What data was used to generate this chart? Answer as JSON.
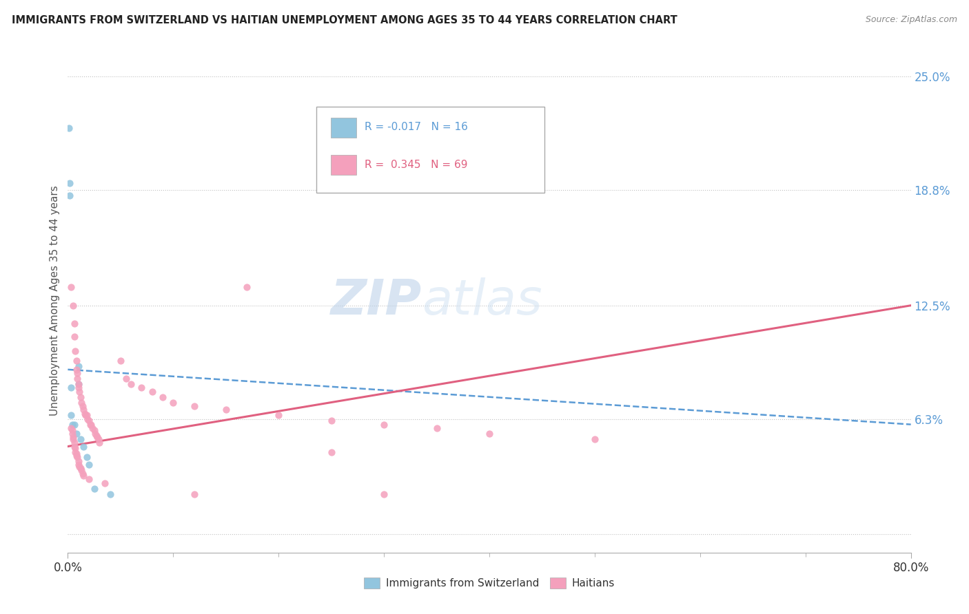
{
  "title": "IMMIGRANTS FROM SWITZERLAND VS HAITIAN UNEMPLOYMENT AMONG AGES 35 TO 44 YEARS CORRELATION CHART",
  "source": "Source: ZipAtlas.com",
  "ylabel": "Unemployment Among Ages 35 to 44 years",
  "xlim": [
    0.0,
    0.8
  ],
  "ylim": [
    -0.01,
    0.265
  ],
  "yticks": [
    0.0,
    0.063,
    0.125,
    0.188,
    0.25
  ],
  "ytick_labels": [
    "",
    "6.3%",
    "12.5%",
    "18.8%",
    "25.0%"
  ],
  "xticks": [
    0.0,
    0.8
  ],
  "xtick_labels": [
    "0.0%",
    "80.0%"
  ],
  "swiss_color": "#92c5de",
  "haitian_color": "#f4a0bc",
  "swiss_line_color": "#5b9bd5",
  "haitian_line_color": "#e06080",
  "swiss_scatter": [
    [
      0.001,
      0.222
    ],
    [
      0.002,
      0.192
    ],
    [
      0.002,
      0.185
    ],
    [
      0.003,
      0.08
    ],
    [
      0.003,
      0.065
    ],
    [
      0.004,
      0.06
    ],
    [
      0.006,
      0.06
    ],
    [
      0.008,
      0.055
    ],
    [
      0.01,
      0.092
    ],
    [
      0.01,
      0.082
    ],
    [
      0.012,
      0.052
    ],
    [
      0.015,
      0.048
    ],
    [
      0.018,
      0.042
    ],
    [
      0.02,
      0.038
    ],
    [
      0.025,
      0.025
    ],
    [
      0.04,
      0.022
    ]
  ],
  "haitian_scatter": [
    [
      0.003,
      0.135
    ],
    [
      0.005,
      0.125
    ],
    [
      0.006,
      0.115
    ],
    [
      0.006,
      0.108
    ],
    [
      0.007,
      0.1
    ],
    [
      0.008,
      0.095
    ],
    [
      0.008,
      0.09
    ],
    [
      0.009,
      0.088
    ],
    [
      0.009,
      0.085
    ],
    [
      0.01,
      0.082
    ],
    [
      0.01,
      0.08
    ],
    [
      0.011,
      0.078
    ],
    [
      0.012,
      0.075
    ],
    [
      0.013,
      0.072
    ],
    [
      0.014,
      0.07
    ],
    [
      0.015,
      0.068
    ],
    [
      0.016,
      0.066
    ],
    [
      0.017,
      0.065
    ],
    [
      0.018,
      0.065
    ],
    [
      0.019,
      0.063
    ],
    [
      0.02,
      0.062
    ],
    [
      0.021,
      0.06
    ],
    [
      0.022,
      0.06
    ],
    [
      0.023,
      0.058
    ],
    [
      0.025,
      0.057
    ],
    [
      0.026,
      0.055
    ],
    [
      0.027,
      0.054
    ],
    [
      0.028,
      0.053
    ],
    [
      0.029,
      0.052
    ],
    [
      0.03,
      0.05
    ],
    [
      0.003,
      0.058
    ],
    [
      0.004,
      0.057
    ],
    [
      0.004,
      0.055
    ],
    [
      0.005,
      0.053
    ],
    [
      0.005,
      0.052
    ],
    [
      0.006,
      0.05
    ],
    [
      0.006,
      0.048
    ],
    [
      0.007,
      0.047
    ],
    [
      0.007,
      0.045
    ],
    [
      0.008,
      0.044
    ],
    [
      0.008,
      0.043
    ],
    [
      0.009,
      0.042
    ],
    [
      0.01,
      0.04
    ],
    [
      0.01,
      0.038
    ],
    [
      0.011,
      0.037
    ],
    [
      0.012,
      0.036
    ],
    [
      0.013,
      0.035
    ],
    [
      0.014,
      0.033
    ],
    [
      0.015,
      0.032
    ],
    [
      0.02,
      0.03
    ],
    [
      0.035,
      0.028
    ],
    [
      0.05,
      0.095
    ],
    [
      0.055,
      0.085
    ],
    [
      0.06,
      0.082
    ],
    [
      0.07,
      0.08
    ],
    [
      0.08,
      0.078
    ],
    [
      0.09,
      0.075
    ],
    [
      0.1,
      0.072
    ],
    [
      0.12,
      0.07
    ],
    [
      0.15,
      0.068
    ],
    [
      0.2,
      0.065
    ],
    [
      0.25,
      0.062
    ],
    [
      0.3,
      0.06
    ],
    [
      0.35,
      0.058
    ],
    [
      0.4,
      0.055
    ],
    [
      0.5,
      0.052
    ],
    [
      0.17,
      0.135
    ],
    [
      0.25,
      0.045
    ],
    [
      0.3,
      0.022
    ],
    [
      0.12,
      0.022
    ]
  ],
  "swiss_trend": [
    0.0,
    0.8,
    0.09,
    0.06
  ],
  "haitian_trend": [
    0.0,
    0.8,
    0.048,
    0.125
  ]
}
